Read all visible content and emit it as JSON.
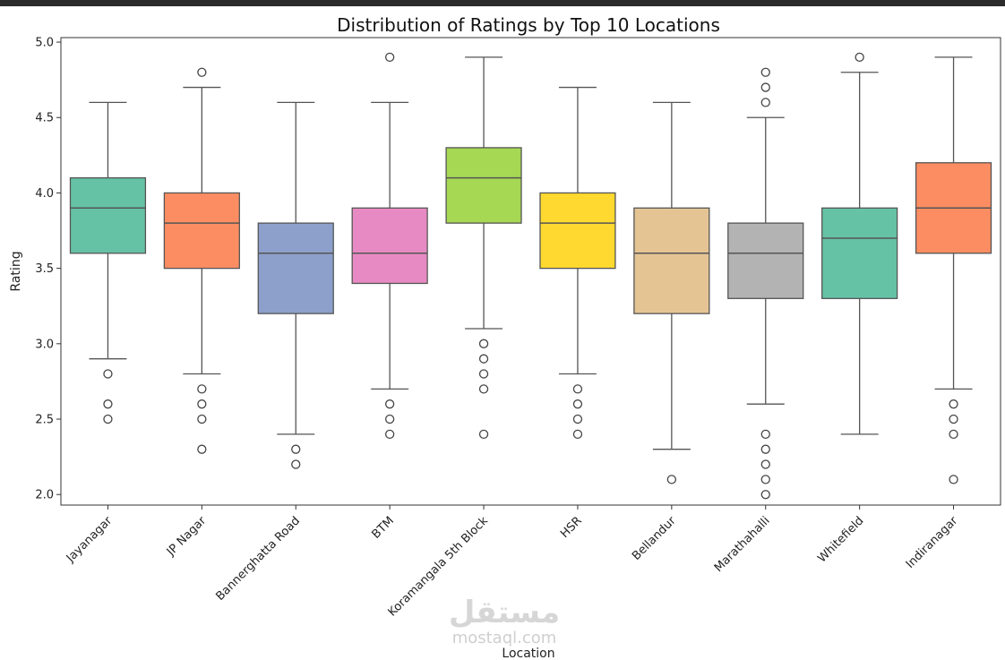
{
  "chart_data": {
    "type": "boxplot",
    "title": "Distribution of Ratings by Top 10 Locations",
    "xlabel": "Location",
    "ylabel": "Rating",
    "ylim": [
      1.93,
      5.03
    ],
    "yticks": [
      2.0,
      2.5,
      3.0,
      3.5,
      4.0,
      4.5,
      5.0
    ],
    "ytick_labels": [
      "2.0",
      "2.5",
      "3.0",
      "3.5",
      "4.0",
      "4.5",
      "5.0"
    ],
    "series": [
      {
        "name": "Jayanagar",
        "color": "#66c2a5",
        "whislo": 2.9,
        "q1": 3.6,
        "median": 3.9,
        "q3": 4.1,
        "whishi": 4.6,
        "fliers": [
          2.8,
          2.6,
          2.5
        ]
      },
      {
        "name": "JP Nagar",
        "color": "#fc8d62",
        "whislo": 2.8,
        "q1": 3.5,
        "median": 3.8,
        "q3": 4.0,
        "whishi": 4.7,
        "fliers": [
          4.8,
          2.7,
          2.6,
          2.5,
          2.3
        ]
      },
      {
        "name": "Bannerghatta Road",
        "color": "#8da0cb",
        "whislo": 2.4,
        "q1": 3.2,
        "median": 3.6,
        "q3": 3.8,
        "whishi": 4.6,
        "fliers": [
          2.3,
          2.2
        ]
      },
      {
        "name": "BTM",
        "color": "#e78ac3",
        "whislo": 2.7,
        "q1": 3.4,
        "median": 3.6,
        "q3": 3.9,
        "whishi": 4.6,
        "fliers": [
          4.9,
          2.6,
          2.5,
          2.4
        ]
      },
      {
        "name": "Koramangala 5th Block",
        "color": "#a6d854",
        "whislo": 3.1,
        "q1": 3.8,
        "median": 4.1,
        "q3": 4.3,
        "whishi": 4.9,
        "fliers": [
          3.0,
          2.9,
          2.8,
          2.7,
          2.4
        ]
      },
      {
        "name": "HSR",
        "color": "#ffd92f",
        "whislo": 2.8,
        "q1": 3.5,
        "median": 3.8,
        "q3": 4.0,
        "whishi": 4.7,
        "fliers": [
          2.7,
          2.6,
          2.5,
          2.4
        ]
      },
      {
        "name": "Bellandur",
        "color": "#e5c494",
        "whislo": 2.3,
        "q1": 3.2,
        "median": 3.6,
        "q3": 3.9,
        "whishi": 4.6,
        "fliers": [
          2.1
        ]
      },
      {
        "name": "Marathahalli",
        "color": "#b3b3b3",
        "whislo": 2.6,
        "q1": 3.3,
        "median": 3.6,
        "q3": 3.8,
        "whishi": 4.5,
        "fliers": [
          4.8,
          4.7,
          4.6,
          2.4,
          2.3,
          2.2,
          2.1,
          2.0
        ]
      },
      {
        "name": "Whitefield",
        "color": "#66c2a5",
        "whislo": 2.4,
        "q1": 3.3,
        "median": 3.7,
        "q3": 3.9,
        "whishi": 4.8,
        "fliers": [
          4.9
        ]
      },
      {
        "name": "Indiranagar",
        "color": "#fc8d62",
        "whislo": 2.7,
        "q1": 3.6,
        "median": 3.9,
        "q3": 4.2,
        "whishi": 4.9,
        "fliers": [
          2.6,
          2.5,
          2.4,
          2.1
        ]
      }
    ]
  },
  "watermark": {
    "text_arabic": "مستقل",
    "text_latin": "mostaql.com"
  }
}
